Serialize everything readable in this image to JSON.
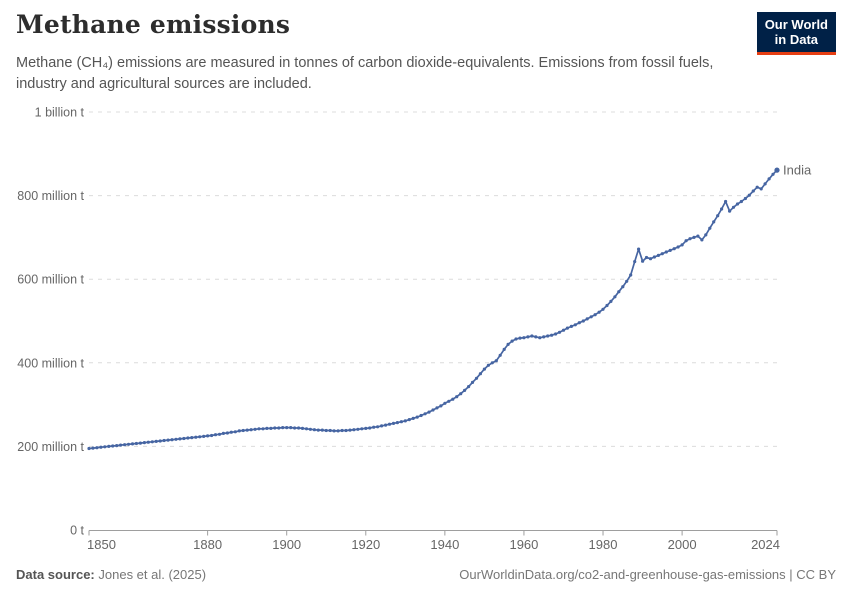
{
  "header": {
    "title": "Methane emissions",
    "subtitle": "Methane (CH₄) emissions are measured in tonnes of carbon dioxide-equivalents. Emissions from fossil fuels,\nindustry and agricultural sources are included.",
    "logo": {
      "line1": "Our World",
      "line2": "in Data"
    }
  },
  "colors": {
    "line": "#4665a2",
    "logo_bg": "#002147",
    "logo_accent": "#e63e13",
    "gridline": "#dcdcdc",
    "axis": "#9e9e9e",
    "tick_text": "#666666"
  },
  "chart_data": {
    "type": "line",
    "title": "Methane emissions",
    "entity": "India",
    "unit": "tonnes of carbon dioxide-equivalents",
    "values_unit": "million tonnes CO2e",
    "xlim": [
      1850,
      2024
    ],
    "ylim": [
      0,
      1000
    ],
    "grid": "dashed-horizontal",
    "legend_position": "end-of-line-label",
    "x_ticks": [
      1850,
      1880,
      1900,
      1920,
      1940,
      1960,
      1980,
      2000,
      2024
    ],
    "y_ticks": [
      {
        "value": 0,
        "label": "0 t"
      },
      {
        "value": 200,
        "label": "200 million t"
      },
      {
        "value": 400,
        "label": "400 million t"
      },
      {
        "value": 600,
        "label": "600 million t"
      },
      {
        "value": 800,
        "label": "800 million t"
      },
      {
        "value": 1000,
        "label": "1 billion t"
      }
    ],
    "start_year": 1850,
    "end_year": 2024,
    "x_step": 1,
    "line_color": "#4665a2",
    "values": [
      195,
      196,
      197,
      198,
      199,
      200,
      201,
      202,
      203,
      204,
      205,
      206,
      207,
      208,
      209,
      210,
      211,
      212,
      213,
      214,
      215,
      216,
      217,
      218,
      219,
      220,
      221,
      222,
      223,
      224,
      225,
      226,
      228,
      229,
      231,
      232,
      234,
      235,
      237,
      238,
      239,
      240,
      241,
      242,
      242,
      243,
      243,
      244,
      244,
      245,
      245,
      245,
      244,
      244,
      243,
      242,
      241,
      240,
      239,
      239,
      238,
      238,
      237,
      237,
      238,
      238,
      239,
      240,
      241,
      242,
      243,
      244,
      246,
      247,
      249,
      251,
      253,
      255,
      257,
      259,
      261,
      264,
      267,
      270,
      274,
      278,
      282,
      287,
      292,
      297,
      303,
      308,
      313,
      319,
      326,
      334,
      343,
      353,
      363,
      374,
      385,
      394,
      400,
      405,
      418,
      432,
      444,
      452,
      457,
      459,
      460,
      462,
      464,
      462,
      460,
      462,
      464,
      466,
      469,
      473,
      478,
      483,
      487,
      491,
      496,
      500,
      505,
      510,
      515,
      521,
      528,
      537,
      547,
      558,
      570,
      582,
      595,
      610,
      642,
      672,
      643,
      652,
      649,
      653,
      657,
      661,
      665,
      669,
      673,
      677,
      682,
      692,
      697,
      700,
      703,
      694,
      706,
      722,
      737,
      752,
      768,
      786,
      763,
      772,
      780,
      786,
      793,
      801,
      811,
      820,
      816,
      828,
      840,
      851,
      861
    ]
  },
  "footer": {
    "data_source_label": "Data source:",
    "data_source_value": "Jones et al. (2025)",
    "attribution": "OurWorldinData.org/co2-and-greenhouse-gas-emissions | CC BY"
  }
}
